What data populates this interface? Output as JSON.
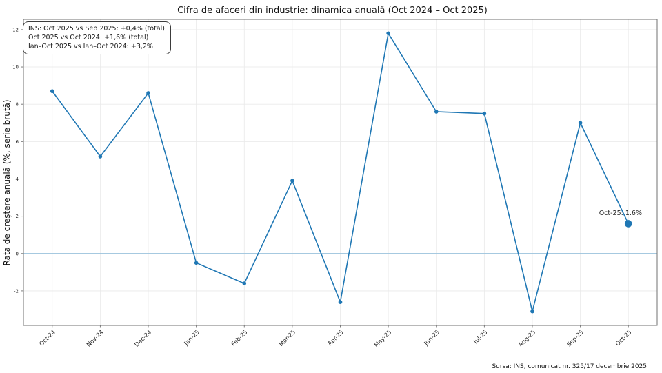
{
  "title": "Cifra de afaceri din industrie: dinamica anuală (Oct 2024 – Oct 2025)",
  "ylabel": "Rata de creștere anuală (%, serie brută)",
  "info_box": {
    "line1": "INS: Oct 2025 vs Sep 2025: +0,4% (total)",
    "line2": "Oct 2025 vs Oct 2024: +1,6% (total)",
    "line3": "Ian–Oct 2025 vs Ian–Oct 2024: +3,2%"
  },
  "annotation": {
    "last_point_label": "Oct-25: 1.6%"
  },
  "source": "Sursa: INS, comunicat nr. 325/17 decembrie 2025",
  "colors": {
    "line": "#1f77b4",
    "zero_line": "#9ac2dd",
    "grid": "#e9e9e9",
    "spine": "#707070",
    "tick_label": "#262626",
    "text": "#111111"
  },
  "chart_data": {
    "type": "line",
    "title": "Cifra de afaceri din industrie: dinamica anuală (Oct 2024 – Oct 2025)",
    "xlabel": "",
    "ylabel": "Rata de creștere anuală (%, serie brută)",
    "categories": [
      "Oct-24",
      "Nov-24",
      "Dec-24",
      "Jan-25",
      "Feb-25",
      "Mar-25",
      "Apr-25",
      "May-25",
      "Jun-25",
      "Jul-25",
      "Aug-25",
      "Sep-25",
      "Oct-25"
    ],
    "values": [
      8.7,
      5.2,
      8.6,
      -0.5,
      -1.6,
      3.9,
      -2.6,
      11.8,
      7.6,
      7.5,
      -3.1,
      7.0,
      1.6
    ],
    "yticks": [
      -2,
      0,
      2,
      4,
      6,
      8,
      10,
      12
    ],
    "ylim": [
      -3.85,
      12.55
    ],
    "xlim": [
      -0.6,
      12.6
    ],
    "grid": true,
    "zero_line": 0,
    "legend": "none",
    "highlight_last_point": true
  }
}
